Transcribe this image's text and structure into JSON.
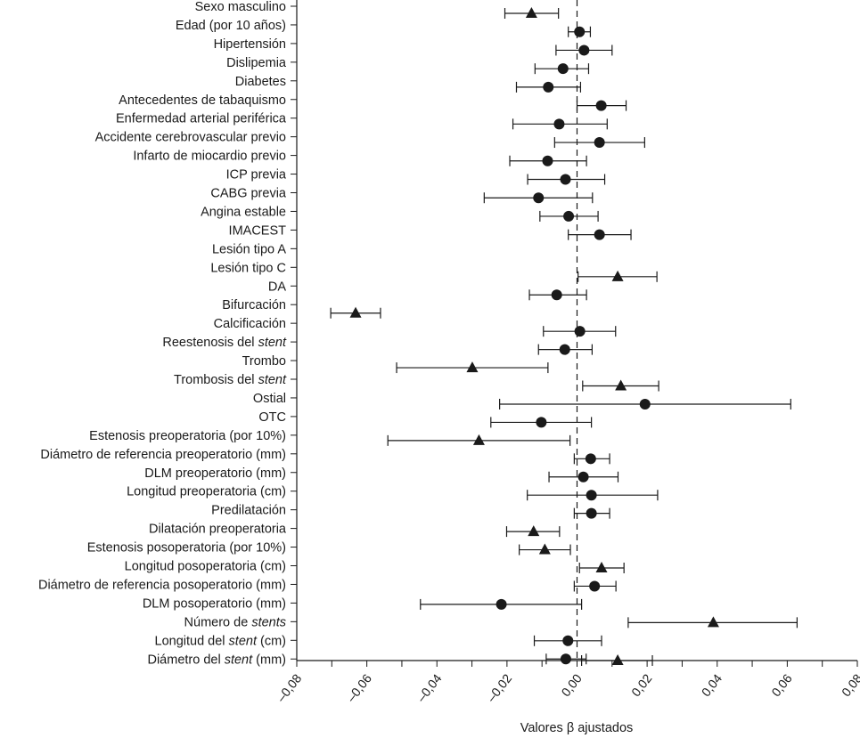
{
  "chart_data": {
    "type": "forest",
    "xlabel": "Valores β ajustados",
    "xlim": [
      -0.08,
      0.08
    ],
    "xticks": [
      -0.08,
      -0.07,
      -0.06,
      -0.05,
      -0.04,
      -0.03,
      -0.02,
      -0.01,
      0.0,
      0.01,
      0.02,
      0.03,
      0.04,
      0.05,
      0.06,
      0.07,
      0.08
    ],
    "xtick_labels": [
      "–0,08",
      "",
      "–0,06",
      "",
      "–0,04",
      "",
      "–0,02",
      "",
      "0,00",
      "",
      "0,02",
      "",
      "0,04",
      "",
      "0,06",
      "",
      "0,08"
    ],
    "reference_line": 0.0,
    "marker_legend": {
      "circle": "circle marker",
      "triangle": "triangle marker"
    },
    "rows": [
      {
        "label": "Sexo masculino",
        "italic": "",
        "estimate": -0.013,
        "low": -0.0206,
        "high": -0.0053,
        "marker": "triangle"
      },
      {
        "label": "Edad (por 10 años)",
        "italic": "",
        "estimate": 0.0007,
        "low": -0.0025,
        "high": 0.0038,
        "marker": "circle"
      },
      {
        "label": "Hipertensión",
        "italic": "",
        "estimate": 0.002,
        "low": -0.006,
        "high": 0.01,
        "marker": "circle"
      },
      {
        "label": "Dislipemia",
        "italic": "",
        "estimate": -0.004,
        "low": -0.012,
        "high": 0.0033,
        "marker": "circle"
      },
      {
        "label": "Diabetes",
        "italic": "",
        "estimate": -0.0082,
        "low": -0.0173,
        "high": 0.001,
        "marker": "circle"
      },
      {
        "label": "Antecedentes de tabaquismo",
        "italic": "",
        "estimate": 0.0069,
        "low": 0.0,
        "high": 0.014,
        "marker": "circle"
      },
      {
        "label": "Enfermedad arterial periférica",
        "italic": "",
        "estimate": -0.0051,
        "low": -0.0183,
        "high": 0.0086,
        "marker": "circle"
      },
      {
        "label": "Accidente cerebrovascular previo",
        "italic": "",
        "estimate": 0.0064,
        "low": -0.0064,
        "high": 0.0193,
        "marker": "circle"
      },
      {
        "label": "Infarto de miocardio previo",
        "italic": "",
        "estimate": -0.0084,
        "low": -0.0192,
        "high": 0.0027,
        "marker": "circle"
      },
      {
        "label": "ICP previa",
        "italic": "",
        "estimate": -0.0033,
        "low": -0.0141,
        "high": 0.0079,
        "marker": "circle"
      },
      {
        "label": "CABG previa",
        "italic": "",
        "estimate": -0.011,
        "low": -0.0265,
        "high": 0.0044,
        "marker": "circle"
      },
      {
        "label": "Angina estable",
        "italic": "",
        "estimate": -0.0024,
        "low": -0.0106,
        "high": 0.006,
        "marker": "circle"
      },
      {
        "label": "IMACEST",
        "italic": "",
        "estimate": 0.0064,
        "low": -0.0025,
        "high": 0.0154,
        "marker": "circle"
      },
      {
        "label": "Lesión tipo A",
        "italic": "",
        "estimate": null,
        "low": null,
        "high": null,
        "marker": "none"
      },
      {
        "label": "Lesión tipo C",
        "italic": "",
        "estimate": 0.0116,
        "low": 0.0003,
        "high": 0.0228,
        "marker": "triangle"
      },
      {
        "label": "DA",
        "italic": "",
        "estimate": -0.0058,
        "low": -0.0136,
        "high": 0.0027,
        "marker": "circle"
      },
      {
        "label": "Bifurcación",
        "italic": "",
        "estimate": -0.0632,
        "low": -0.0703,
        "high": -0.0561,
        "marker": "triangle"
      },
      {
        "label": "Calcificación",
        "italic": "",
        "estimate": 0.0008,
        "low": -0.0096,
        "high": 0.011,
        "marker": "circle"
      },
      {
        "label": "Reestenosis del ",
        "italic": "stent",
        "estimate": -0.0035,
        "low": -0.011,
        "high": 0.0043,
        "marker": "circle"
      },
      {
        "label": "Trombo",
        "italic": "",
        "estimate": -0.0299,
        "low": -0.0515,
        "high": -0.0083,
        "marker": "triangle"
      },
      {
        "label": "Trombosis del ",
        "italic": "stent",
        "estimate": 0.0125,
        "low": 0.0016,
        "high": 0.0233,
        "marker": "triangle"
      },
      {
        "label": "Ostial",
        "italic": "",
        "estimate": 0.0194,
        "low": -0.0221,
        "high": 0.061,
        "marker": "circle"
      },
      {
        "label": "OTC",
        "italic": "",
        "estimate": -0.0102,
        "low": -0.0246,
        "high": 0.0041,
        "marker": "circle"
      },
      {
        "label": "Estenosis preoperatoria (por 10%)",
        "italic": "",
        "estimate": -0.028,
        "low": -0.054,
        "high": -0.002,
        "marker": "triangle"
      },
      {
        "label": "Diámetro de referencia preoperatorio (mm)",
        "italic": "",
        "estimate": 0.0039,
        "low": -0.0008,
        "high": 0.0093,
        "marker": "circle"
      },
      {
        "label": "DLM preoperatorio (mm)",
        "italic": "",
        "estimate": 0.0018,
        "low": -0.008,
        "high": 0.0117,
        "marker": "circle"
      },
      {
        "label": "Longitud preoperatoria (cm)",
        "italic": "",
        "estimate": 0.0041,
        "low": -0.0142,
        "high": 0.023,
        "marker": "circle"
      },
      {
        "label": "Predilatación",
        "italic": "",
        "estimate": 0.0041,
        "low": -0.0008,
        "high": 0.0093,
        "marker": "circle"
      },
      {
        "label": "Dilatación preoperatoria",
        "italic": "",
        "estimate": -0.0124,
        "low": -0.0201,
        "high": -0.005,
        "marker": "triangle"
      },
      {
        "label": "Estenosis posoperatoria (por 10%)",
        "italic": "",
        "estimate": -0.0092,
        "low": -0.0165,
        "high": -0.0019,
        "marker": "triangle"
      },
      {
        "label": "Longitud posoperatoria (cm)",
        "italic": "",
        "estimate": 0.007,
        "low": 0.0007,
        "high": 0.0134,
        "marker": "triangle"
      },
      {
        "label": "Diámetro de referencia posoperatorio (mm)",
        "italic": "",
        "estimate": 0.005,
        "low": -0.0008,
        "high": 0.0111,
        "marker": "circle"
      },
      {
        "label": "DLM posoperatorio (mm)",
        "italic": "",
        "estimate": -0.0216,
        "low": -0.0447,
        "high": 0.0013,
        "marker": "circle"
      },
      {
        "label": "Número de ",
        "italic": "stents",
        "suffix": "",
        "estimate": 0.0389,
        "low": 0.0146,
        "high": 0.0628,
        "marker": "triangle"
      },
      {
        "label": "Longitud del ",
        "italic": "stent",
        "suffix": " (cm)",
        "estimate": -0.0026,
        "low": -0.0122,
        "high": 0.007,
        "marker": "circle"
      },
      {
        "label": "Diámetro del ",
        "italic": "stent",
        "suffix": " (mm)",
        "estimate": -0.0032,
        "low": -0.0088,
        "high": 0.0026,
        "marker": "circle"
      }
    ],
    "extra_bottom_mark": {
      "estimate": 0.0116,
      "low": 0.0013,
      "high": 0.0215,
      "marker": "triangle"
    }
  }
}
